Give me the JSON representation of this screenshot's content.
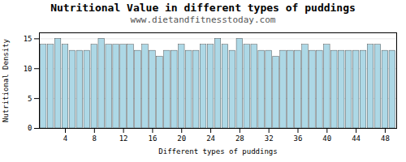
{
  "chart_data": {
    "type": "bar",
    "title": "Nutritional Value in different types of puddings",
    "subtitle": "www.dietandfitnesstoday.com",
    "xlabel": "Different types of puddings",
    "ylabel": "Nutritional Density",
    "categories": [
      null,
      null,
      null,
      "4",
      null,
      null,
      null,
      "8",
      null,
      null,
      null,
      "12",
      null,
      null,
      null,
      "16",
      null,
      null,
      null,
      "20",
      null,
      null,
      null,
      "24",
      null,
      null,
      null,
      "28",
      null,
      null,
      null,
      "32",
      null,
      null,
      null,
      "36",
      null,
      null,
      null,
      "40",
      null,
      null,
      null,
      "44",
      null,
      null,
      null,
      "48",
      null
    ],
    "values": [
      14,
      14,
      15,
      14,
      13,
      13,
      13,
      14,
      15,
      14,
      14,
      14,
      14,
      13,
      14,
      13,
      12,
      13,
      13,
      14,
      13,
      13,
      14,
      14,
      15,
      14,
      13,
      15,
      14,
      14,
      13,
      13,
      12,
      13,
      13,
      13,
      14,
      13,
      13,
      14,
      13,
      13,
      13,
      13,
      13,
      14,
      14,
      13,
      13
    ],
    "color": "#add8e6",
    "ylim": [
      0,
      16
    ],
    "yticks": [
      0,
      5,
      10,
      15
    ],
    "grid": true
  }
}
